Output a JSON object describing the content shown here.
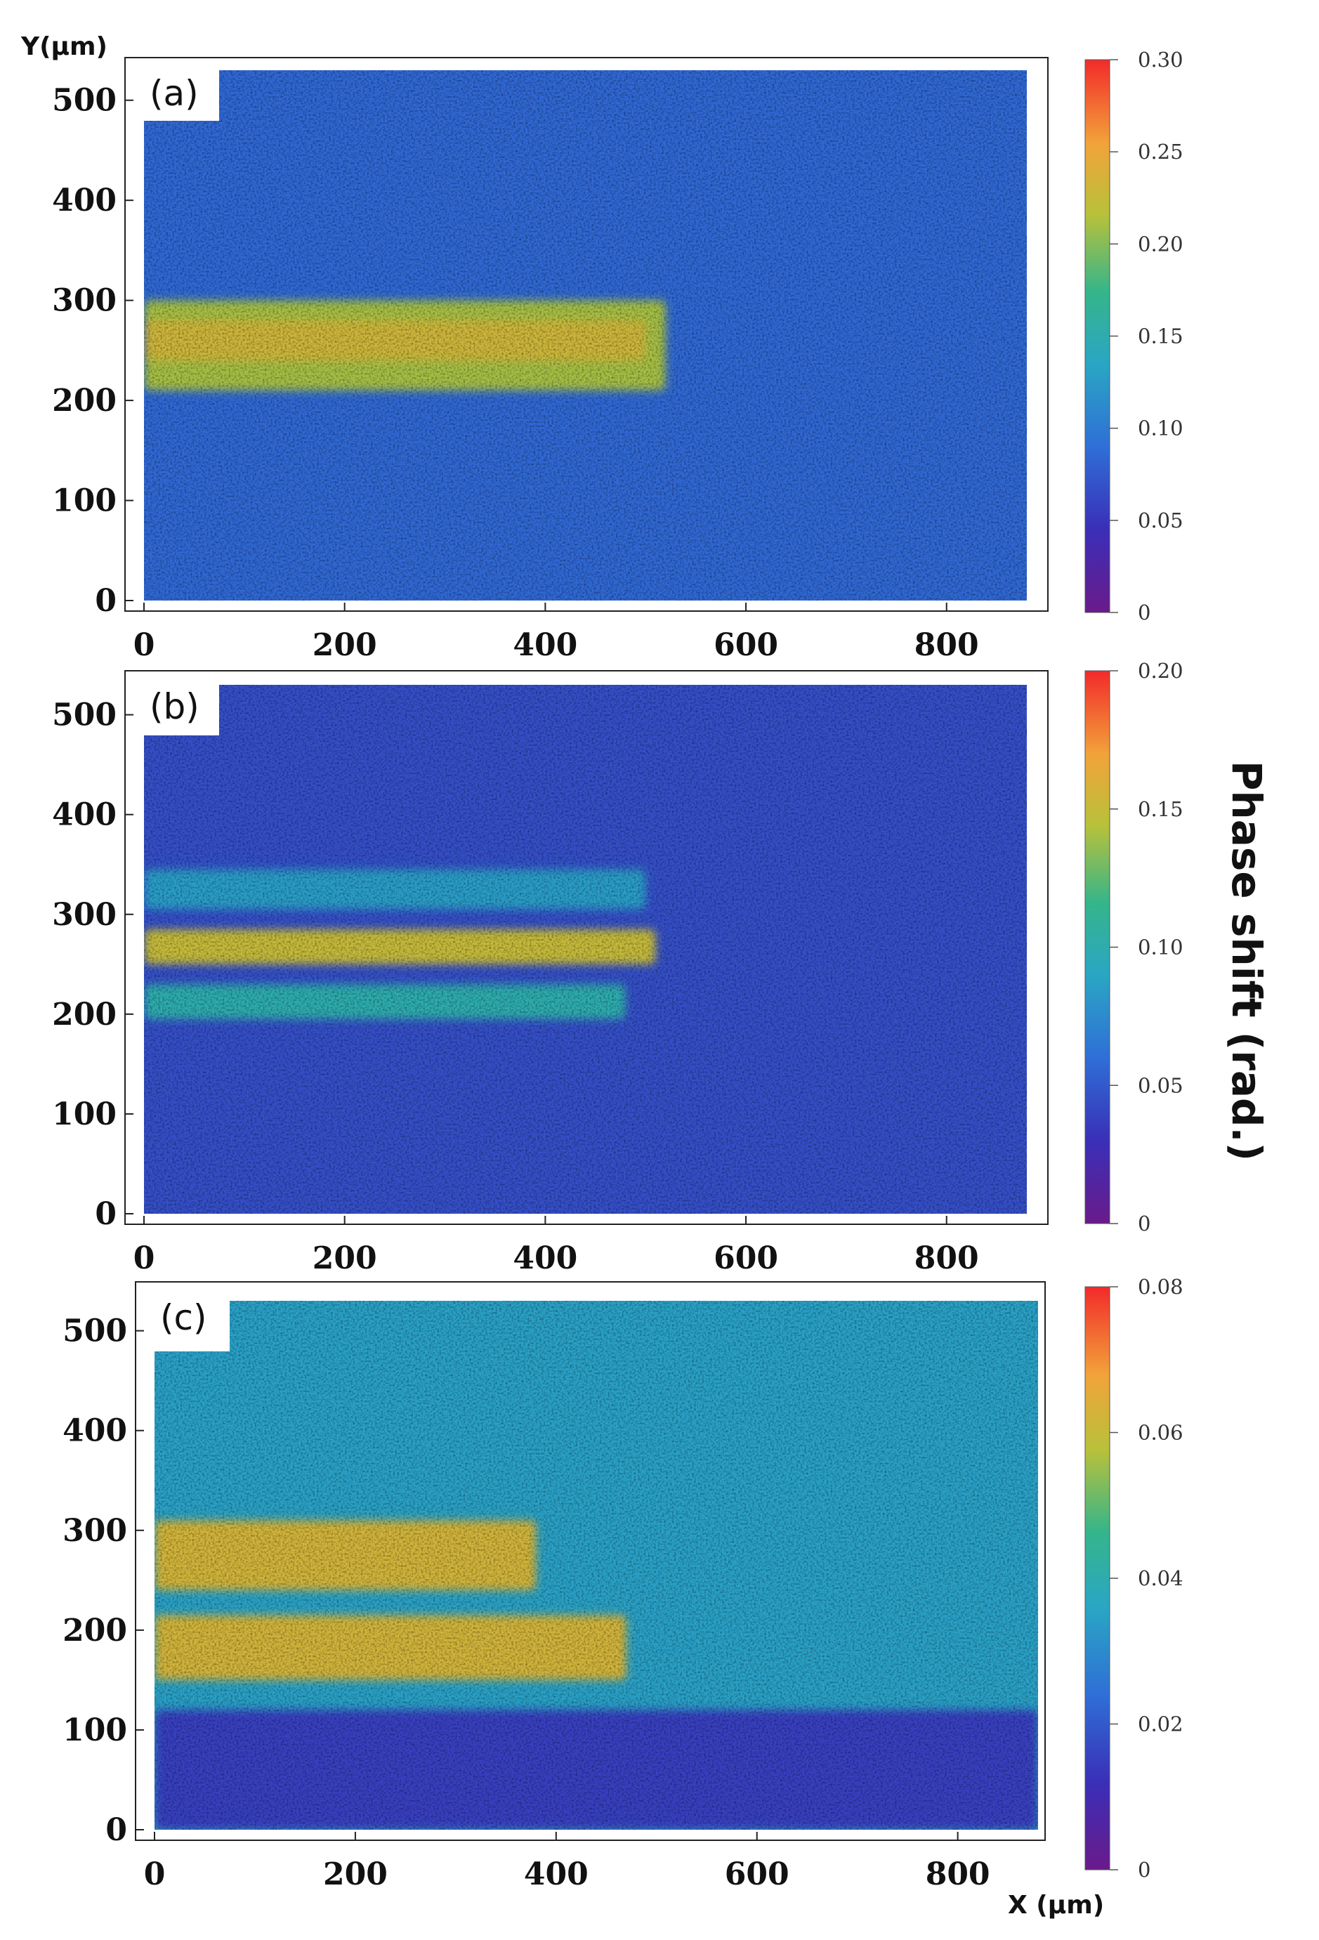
{
  "figure": {
    "y_axis_label": "Y(μm)",
    "x_axis_label": "X (μm)",
    "colorbar_title": "Phase shift (rad.)"
  },
  "chart_data": [
    {
      "type": "heatmap",
      "panel_label": "(a)",
      "xlim": [
        0,
        880
      ],
      "ylim": [
        0,
        530
      ],
      "x_ticks": [
        "0",
        "200",
        "400",
        "600",
        "800"
      ],
      "y_ticks": [
        "0",
        "100",
        "200",
        "300",
        "400",
        "500"
      ],
      "colorbar": {
        "min": 0,
        "max": 0.3,
        "ticks": [
          "0",
          "0.05",
          "0.10",
          "0.15",
          "0.20",
          "0.25",
          "0.30"
        ]
      },
      "background_value": 0.085,
      "bands": [
        {
          "x": [
            0,
            520
          ],
          "y": [
            210,
            300
          ],
          "value": 0.21
        },
        {
          "x": [
            0,
            500
          ],
          "y": [
            240,
            280
          ],
          "value": 0.23
        }
      ]
    },
    {
      "type": "heatmap",
      "panel_label": "(b)",
      "xlim": [
        0,
        880
      ],
      "ylim": [
        0,
        530
      ],
      "x_ticks": [
        "0",
        "200",
        "400",
        "600",
        "800"
      ],
      "y_ticks": [
        "0",
        "100",
        "200",
        "300",
        "400",
        "500"
      ],
      "colorbar": {
        "min": 0,
        "max": 0.2,
        "ticks": [
          "0",
          "0.05",
          "0.10",
          "0.15",
          "0.20"
        ]
      },
      "background_value": 0.045,
      "bands": [
        {
          "x": [
            0,
            500
          ],
          "y": [
            305,
            345
          ],
          "value": 0.085
        },
        {
          "x": [
            0,
            510
          ],
          "y": [
            250,
            285
          ],
          "value": 0.15
        },
        {
          "x": [
            0,
            480
          ],
          "y": [
            195,
            230
          ],
          "value": 0.1
        }
      ]
    },
    {
      "type": "heatmap",
      "panel_label": "(c)",
      "xlim": [
        0,
        880
      ],
      "ylim": [
        0,
        530
      ],
      "x_ticks": [
        "0",
        "200",
        "400",
        "600",
        "800"
      ],
      "y_ticks": [
        "0",
        "100",
        "200",
        "300",
        "400",
        "500"
      ],
      "colorbar": {
        "min": 0,
        "max": 0.08,
        "ticks": [
          "0",
          "0.02",
          "0.04",
          "0.06",
          "0.08"
        ]
      },
      "background_value": 0.035,
      "bands": [
        {
          "x": [
            0,
            380
          ],
          "y": [
            240,
            310
          ],
          "value": 0.062
        },
        {
          "x": [
            0,
            470
          ],
          "y": [
            150,
            215
          ],
          "value": 0.062
        },
        {
          "x": [
            0,
            880
          ],
          "y": [
            0,
            120
          ],
          "value": 0.015
        }
      ]
    }
  ]
}
